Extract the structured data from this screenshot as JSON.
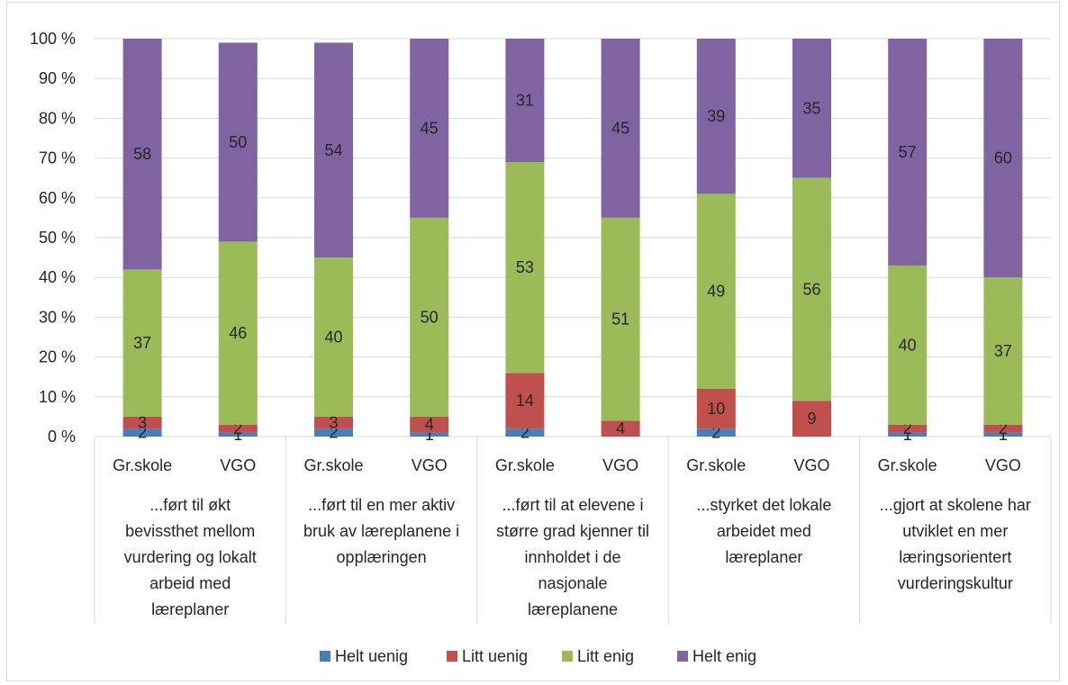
{
  "chart_data": {
    "type": "bar",
    "stacked": true,
    "percent_stacked": true,
    "ylim": [
      0,
      100
    ],
    "ytick_labels": [
      "0 %",
      "10 %",
      "20 %",
      "30 %",
      "40 %",
      "50 %",
      "60 %",
      "70 %",
      "80 %",
      "90 %",
      "100 %"
    ],
    "groups": [
      {
        "label_lines": [
          "...ført til økt",
          "bevissthet mellom",
          "vurdering og lokalt",
          "arbeid med",
          "læreplaner"
        ],
        "bars": [
          "Gr.skole",
          "VGO"
        ]
      },
      {
        "label_lines": [
          "...ført til en mer aktiv",
          "bruk av læreplanene i",
          "opplæringen"
        ],
        "bars": [
          "Gr.skole",
          "VGO"
        ]
      },
      {
        "label_lines": [
          "...ført til at elevene i",
          "større grad kjenner til",
          "innholdet i de",
          "nasjonale",
          "læreplanene"
        ],
        "bars": [
          "Gr.skole",
          "VGO"
        ]
      },
      {
        "label_lines": [
          "...styrket det lokale",
          "arbeidet med",
          "læreplaner"
        ],
        "bars": [
          "Gr.skole",
          "VGO"
        ]
      },
      {
        "label_lines": [
          "...gjort at skolene har",
          "utviklet en mer",
          "læringsorientert",
          "vurderingskultur"
        ],
        "bars": [
          "Gr.skole",
          "VGO"
        ]
      }
    ],
    "series": [
      {
        "name": "Helt uenig",
        "color": "#4a7ebb",
        "values": [
          2,
          1,
          2,
          1,
          2,
          0,
          2,
          0,
          1,
          1
        ],
        "labels": [
          "2",
          "1",
          "2",
          "1",
          "2",
          "",
          "2",
          "",
          "1",
          "1"
        ]
      },
      {
        "name": "Litt uenig",
        "color": "#c0504d",
        "values": [
          3,
          2,
          3,
          4,
          14,
          4,
          10,
          9,
          2,
          2
        ],
        "labels": [
          "3",
          "2",
          "3",
          "4",
          "14",
          "4",
          "10",
          "9",
          "2",
          "2"
        ]
      },
      {
        "name": "Litt enig",
        "color": "#9bbb59",
        "values": [
          37,
          46,
          40,
          50,
          53,
          51,
          49,
          56,
          40,
          37
        ],
        "labels": [
          "37",
          "46",
          "40",
          "50",
          "53",
          "51",
          "49",
          "56",
          "40",
          "37"
        ]
      },
      {
        "name": "Helt enig",
        "color": "#8064a2",
        "values": [
          58,
          50,
          54,
          45,
          31,
          45,
          39,
          35,
          57,
          60
        ],
        "labels": [
          "58",
          "50",
          "54",
          "45",
          "31",
          "45",
          "39",
          "35",
          "57",
          "60"
        ]
      }
    ],
    "grid": true,
    "legend_position": "bottom"
  }
}
